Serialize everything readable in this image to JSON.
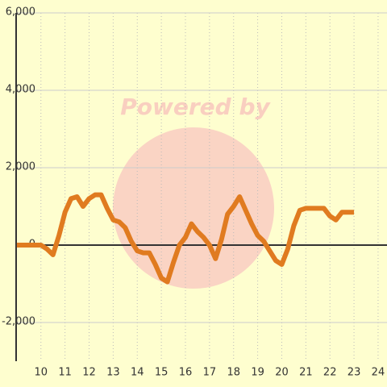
{
  "chart_data": {
    "type": "line",
    "watermark": "Powered by",
    "x": [
      9,
      10,
      10.25,
      10.5,
      10.75,
      11,
      11.25,
      11.5,
      11.75,
      12,
      12.25,
      12.5,
      12.75,
      13,
      13.25,
      13.5,
      13.75,
      14,
      14.25,
      14.5,
      14.75,
      15,
      15.25,
      15.5,
      15.75,
      16,
      16.25,
      16.5,
      16.75,
      17,
      17.25,
      17.5,
      17.75,
      18,
      18.25,
      18.5,
      18.75,
      19,
      19.25,
      19.5,
      19.75,
      20,
      20.25,
      20.5,
      20.75,
      21,
      21.25,
      21.5,
      21.75,
      22,
      22.25,
      22.5,
      22.75,
      23
    ],
    "values": [
      0,
      0,
      -100,
      -250,
      250,
      850,
      1200,
      1250,
      1000,
      1200,
      1300,
      1300,
      950,
      650,
      600,
      450,
      100,
      -150,
      -200,
      -200,
      -500,
      -850,
      -950,
      -450,
      0,
      200,
      550,
      350,
      200,
      0,
      -350,
      150,
      800,
      1000,
      1250,
      900,
      550,
      250,
      100,
      -150,
      -400,
      -500,
      -100,
      500,
      900,
      950,
      950,
      950,
      950,
      750,
      650,
      850,
      850,
      850
    ],
    "color": "#e07b20",
    "xlim": [
      8.97,
      24.37
    ],
    "xticks": [
      10,
      11,
      12,
      13,
      14,
      15,
      16,
      17,
      18,
      19,
      20,
      21,
      22,
      23,
      24
    ],
    "ylim": [
      -3000,
      6000
    ],
    "yticks": [
      {
        "value": -2000,
        "label": "-2,000"
      },
      0,
      {
        "value": 2000,
        "label": "2,000"
      },
      {
        "value": 4000,
        "label": "4,000"
      },
      {
        "value": 6000,
        "label": "6,000"
      }
    ],
    "grid": true
  }
}
